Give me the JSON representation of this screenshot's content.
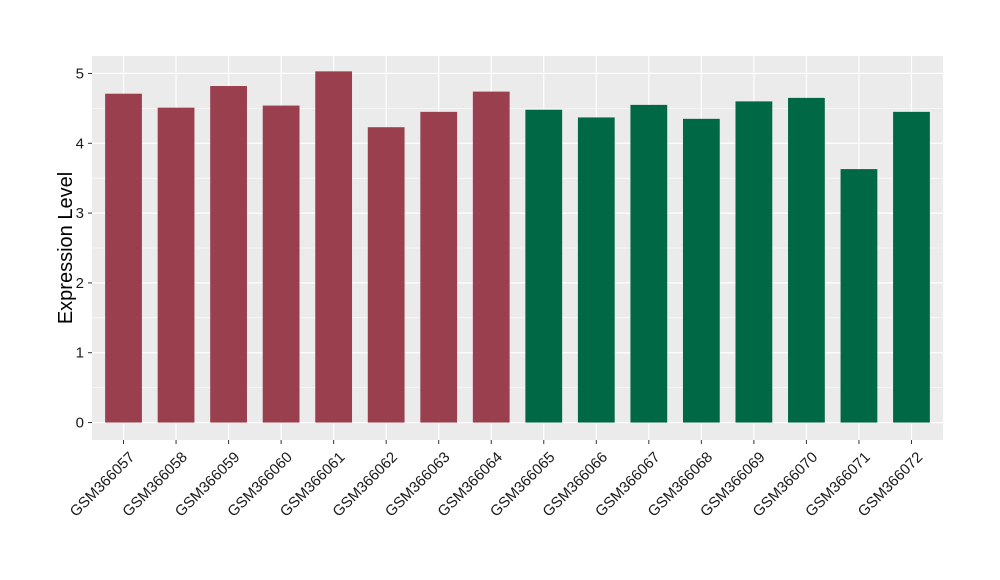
{
  "chart_data": {
    "type": "bar",
    "title": "",
    "xlabel": "",
    "ylabel": "Expression Level",
    "ylim": [
      -0.25,
      5.25
    ],
    "yticks": [
      0,
      1,
      2,
      3,
      4,
      5
    ],
    "grid": true,
    "background": "#EBEBEB",
    "categories": [
      "GSM366057",
      "GSM366058",
      "GSM366059",
      "GSM366060",
      "GSM366061",
      "GSM366062",
      "GSM366063",
      "GSM366064",
      "GSM366065",
      "GSM366066",
      "GSM366067",
      "GSM366068",
      "GSM366069",
      "GSM366070",
      "GSM366071",
      "GSM366072"
    ],
    "values": [
      4.71,
      4.51,
      4.82,
      4.54,
      5.03,
      4.23,
      4.45,
      4.74,
      4.48,
      4.37,
      4.55,
      4.35,
      4.6,
      4.65,
      3.63,
      4.45
    ],
    "group_colors": {
      "group_1": "#9A3F4E",
      "group_2": "#006845"
    },
    "groups": [
      "group_1",
      "group_1",
      "group_1",
      "group_1",
      "group_1",
      "group_1",
      "group_1",
      "group_1",
      "group_2",
      "group_2",
      "group_2",
      "group_2",
      "group_2",
      "group_2",
      "group_2",
      "group_2"
    ]
  }
}
